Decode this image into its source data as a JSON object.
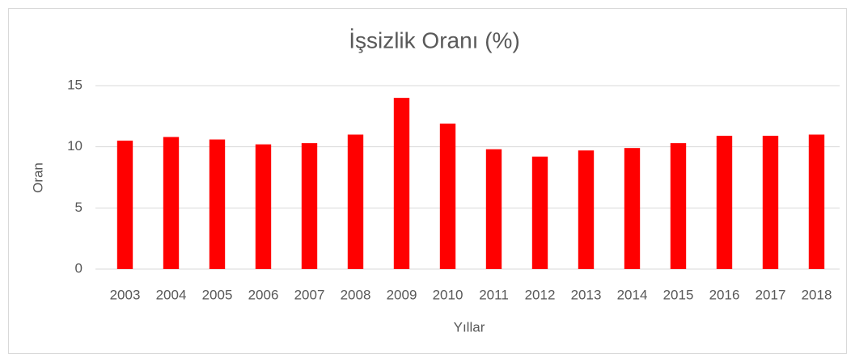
{
  "chart_data": {
    "type": "bar",
    "title": "İşsizlik Oranı (%)",
    "x_label": "Yıllar",
    "y_label": "Oran",
    "categories": [
      "2003",
      "2004",
      "2005",
      "2006",
      "2007",
      "2008",
      "2009",
      "2010",
      "2011",
      "2012",
      "2013",
      "2014",
      "2015",
      "2016",
      "2017",
      "2018"
    ],
    "values": [
      10.5,
      10.8,
      10.6,
      10.2,
      10.3,
      11.0,
      14.0,
      11.9,
      9.8,
      9.2,
      9.7,
      9.9,
      10.3,
      10.9,
      10.9,
      11.0
    ],
    "color": "#ff0000",
    "ylim": [
      0,
      15
    ],
    "yticks": [
      0,
      5,
      10,
      15
    ],
    "grid": true
  }
}
